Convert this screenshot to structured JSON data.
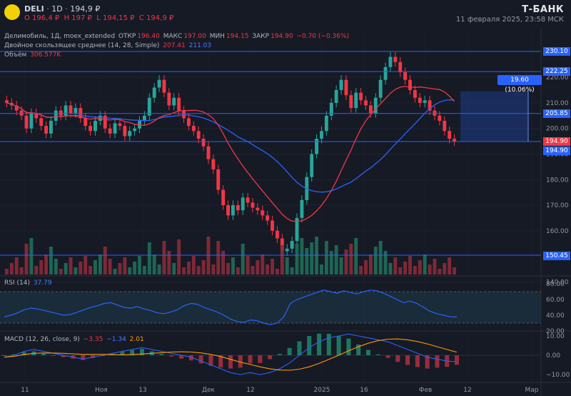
{
  "header": {
    "ticker": "DELI",
    "interval": "1D",
    "price": "194,9 ₽",
    "ohlc": {
      "o": "O 196,4 ₽",
      "h": "H 197 ₽",
      "l": "L 194,15 ₽",
      "c": "C 194,9 ₽"
    },
    "brand": "Т-БАНК",
    "datetime": "11 февраля 2025, 23:58 МСК"
  },
  "legend": {
    "symbol_line": "Делимобиль, 1Д, moex_extended",
    "open_label": "ОТКР",
    "open_value": "196.40",
    "high_label": "МАКС",
    "high_value": "197.00",
    "low_label": "МИН",
    "low_value": "194.15",
    "close_label": "ЗАКР",
    "close_value": "194.90",
    "change": "−0.70 (−0.36%)",
    "ma_label": "Двойное скользящее среднее (14, 28, Simple)",
    "ma_fast": "207.41",
    "ma_slow": "211.03",
    "volume_label": "Объём",
    "volume_value": "306.577K"
  },
  "price_tags": {
    "t230": "230.10",
    "t222": "222.25",
    "t205": "205.85",
    "t194a": "194.90",
    "t194b": "194.90",
    "t150": "150.45"
  },
  "measure": {
    "label": "19.60 (10.06%)"
  },
  "rsi": {
    "label": "RSI (14)",
    "value": "37.79"
  },
  "macd": {
    "label": "MACD (12, 26, close, 9)",
    "v1": "−3.35",
    "v2": "−1.34",
    "v3": "2.01"
  },
  "axes": {
    "price_ticks": [
      "220.00",
      "210.00",
      "200.00",
      "190.00",
      "180.00",
      "170.00",
      "160.00",
      "140.00"
    ],
    "rsi_ticks": [
      "80.00",
      "60.00",
      "40.00",
      "20.00"
    ],
    "macd_ticks": [
      "10.00",
      "0.00",
      "−10.00"
    ],
    "x_ticks": [
      "11",
      "Ноя",
      "13",
      "Дек",
      "12",
      "2025",
      "16",
      "Фев",
      "12",
      "Мар"
    ]
  },
  "chart_data": {
    "type": "candlestick",
    "series": [
      {
        "name": "Делимобиль",
        "values": []
      }
    ],
    "horizontal_levels": [
      230.1,
      222.25,
      205.85,
      194.9,
      150.45
    ],
    "ma_fast": 207.41,
    "ma_slow": 211.03,
    "last_close": 194.9,
    "price_range": [
      140,
      235
    ],
    "rsi_last": 37.79,
    "rsi_range": [
      20,
      80
    ],
    "macd": {
      "macd": -3.35,
      "signal": -1.34,
      "histogram": 2.01
    },
    "colors": {
      "up": "#26a69a",
      "down": "#f23645",
      "ma_fast": "#f23645",
      "ma_slow": "#2962ff",
      "rsi": "#2962ff",
      "level": "#2962ff"
    }
  }
}
